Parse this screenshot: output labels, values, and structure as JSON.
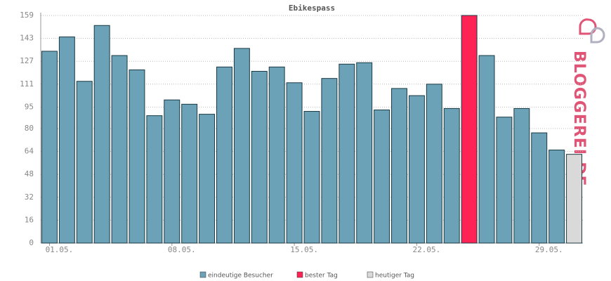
{
  "chart_data": {
    "type": "bar",
    "title": "Ebikespass",
    "watermark": "BLOGGEREI.DE",
    "categories": [
      "01.05.",
      null,
      null,
      null,
      null,
      null,
      null,
      "08.05.",
      null,
      null,
      null,
      null,
      null,
      null,
      "15.05.",
      null,
      null,
      null,
      null,
      null,
      null,
      "22.05.",
      null,
      null,
      null,
      null,
      null,
      null,
      "29.05.",
      null,
      null
    ],
    "series": [
      {
        "name": "eindeutige Besucher",
        "color": "#6ba2b8",
        "values": [
          134,
          144,
          113,
          152,
          131,
          121,
          89,
          100,
          97,
          90,
          123,
          136,
          120,
          123,
          112,
          92,
          115,
          125,
          126,
          93,
          108,
          103,
          111,
          94,
          null,
          131,
          88,
          94,
          77,
          65,
          null
        ]
      },
      {
        "name": "bester Tag",
        "color": "#ff2255",
        "values": [
          null,
          null,
          null,
          null,
          null,
          null,
          null,
          null,
          null,
          null,
          null,
          null,
          null,
          null,
          null,
          null,
          null,
          null,
          null,
          null,
          null,
          null,
          null,
          null,
          159,
          null,
          null,
          null,
          null,
          null,
          null
        ]
      },
      {
        "name": "heutiger Tag",
        "color": "#d9d9d9",
        "values": [
          null,
          null,
          null,
          null,
          null,
          null,
          null,
          null,
          null,
          null,
          null,
          null,
          null,
          null,
          null,
          null,
          null,
          null,
          null,
          null,
          null,
          null,
          null,
          null,
          null,
          null,
          null,
          null,
          null,
          null,
          62
        ]
      }
    ],
    "ylim": [
      0,
      159
    ],
    "yticks": [
      0,
      16,
      32,
      48,
      64,
      80,
      95,
      111,
      127,
      143,
      159
    ],
    "grid": true
  }
}
